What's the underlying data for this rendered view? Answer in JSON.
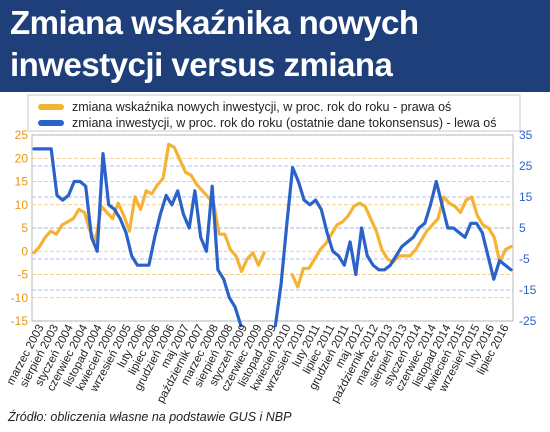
{
  "title": "Zmiana wskaźnika nowych inwestycji versus zmiana inwestycji",
  "source": "Źródło: obliczenia własne na podstawie GUS i NBP",
  "colors": {
    "header": "#1f3f7a",
    "orange": "#f5b335",
    "blue": "#2b62c9",
    "axis_left": "#e8970f",
    "axis_right": "#2b62c9"
  },
  "chart_data": {
    "type": "line",
    "grid": true,
    "legend_position": "top",
    "left_axis": {
      "ylim": [
        -15,
        25
      ],
      "ticks": [
        -15,
        -10,
        -5,
        0,
        5,
        10,
        15,
        20,
        25
      ]
    },
    "right_axis": {
      "ylim": [
        -25,
        35
      ],
      "ticks": [
        -25,
        -15,
        -5,
        5,
        15,
        25,
        35
      ]
    },
    "x_labels": [
      "marzec 2003",
      "sierpień 2003",
      "styczeń 2004",
      "czerwiec 2004",
      "listopad 2004",
      "kwiecień 2005",
      "wrzesień 2005",
      "luty 2006",
      "lipiec 2006",
      "grudzień 2006",
      "maj 2007",
      "październik 2007",
      "marzec 2008",
      "sierpień 2008",
      "styczeń 2009",
      "czerwiec 2009",
      "listopad 2009",
      "kwiecień 2010",
      "wrzesień 2010",
      "luty 2011",
      "lipiec 2011",
      "grudzień 2011",
      "maj 2012",
      "październik 2012",
      "marzec 2013",
      "sierpień 2013",
      "styczeń 2014",
      "czerwiec 2014",
      "listopad 2014",
      "kwiecień 2015",
      "wrzesień 2015",
      "luty 2016",
      "lipiec 2016"
    ],
    "series": [
      {
        "name": "zmiana wskaźnika nowych inwestycji, w proc. rok do roku - prawa oś",
        "axis": "right",
        "color": "#f5b335",
        "values": [
          -3,
          -1,
          2,
          4,
          3,
          6,
          7,
          8,
          11,
          10,
          4,
          1,
          12,
          10,
          8,
          13,
          9,
          4,
          15,
          11,
          17,
          16,
          19,
          21,
          32,
          31,
          27,
          23,
          22,
          19,
          17,
          15,
          13,
          3,
          3,
          -2,
          -4,
          -9,
          -5,
          -3,
          -7,
          -3,
          null,
          null,
          null,
          null,
          -10,
          -14,
          -8,
          -8,
          -5,
          -2,
          0,
          3,
          6,
          7,
          9,
          12,
          13,
          12,
          8,
          4,
          -2,
          -5,
          -6,
          -4,
          -4,
          -4,
          -2,
          1,
          4,
          6,
          8,
          15,
          13,
          12,
          10,
          14,
          15,
          9,
          6,
          5,
          2,
          -6,
          -2,
          -1
        ]
      },
      {
        "name": "zmiana inwestycji, w proc. rok do roku (ostatnie dane tokonsensus) - lewa oś",
        "axis": "left",
        "color": "#2b62c9",
        "values": [
          22,
          22,
          22,
          22,
          12,
          11,
          12,
          15,
          15,
          14,
          3,
          0,
          21,
          10,
          9,
          7,
          4,
          -1,
          -3,
          -3,
          -3,
          3,
          8,
          12,
          10,
          13,
          8,
          5,
          13,
          3,
          0,
          14,
          -4,
          -6,
          -10,
          -12,
          -16,
          null,
          null,
          null,
          null,
          null,
          -16,
          -7,
          6,
          18,
          15,
          11,
          10,
          11,
          9,
          4,
          0,
          -1,
          -3,
          2,
          -5,
          5,
          -1,
          -3,
          -4,
          -4,
          -3,
          -1,
          1,
          2,
          3,
          5,
          6,
          10,
          15,
          10,
          5,
          5,
          4,
          3,
          6,
          6,
          4,
          -1,
          -6,
          -2,
          -3,
          -4
        ]
      }
    ]
  }
}
